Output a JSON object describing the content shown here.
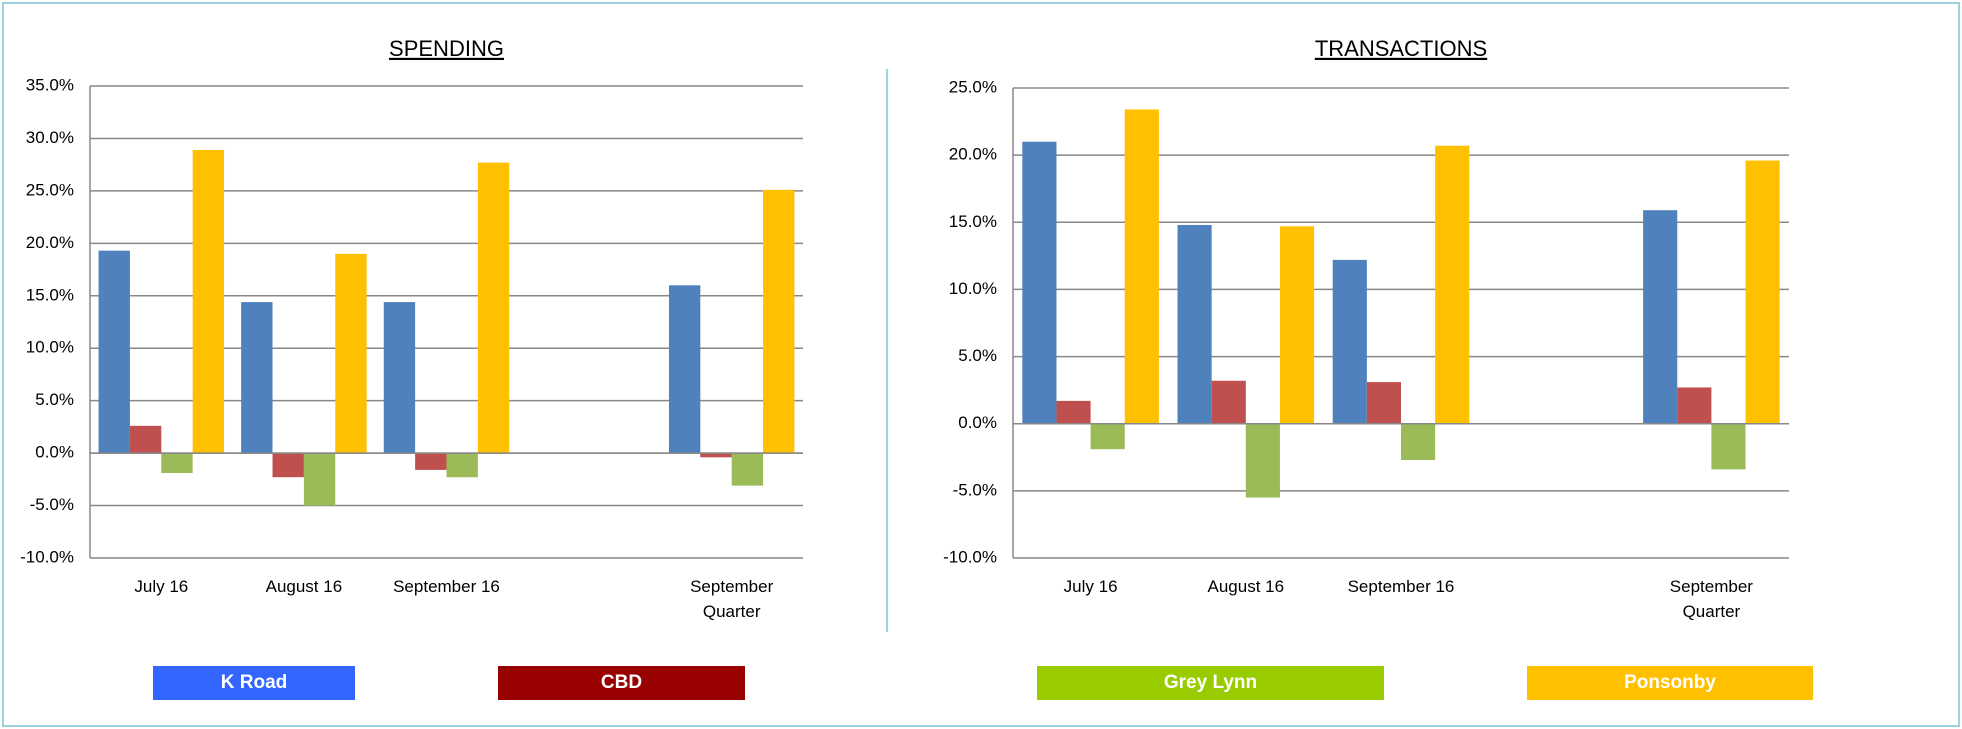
{
  "chart_data": [
    {
      "type": "bar",
      "title": "SPENDING",
      "categories": [
        "July 16",
        "August 16",
        "September 16",
        null,
        "September Quarter"
      ],
      "series": [
        {
          "name": "K Road",
          "color": "#4f81bd",
          "values": [
            19.3,
            14.4,
            14.4,
            null,
            16.0
          ]
        },
        {
          "name": "CBD",
          "color": "#c0504d",
          "values": [
            2.6,
            -2.3,
            -1.6,
            null,
            -0.4
          ]
        },
        {
          "name": "Grey Lynn",
          "color": "#9bbb59",
          "values": [
            -1.9,
            -5.0,
            -2.3,
            null,
            -3.1
          ]
        },
        {
          "name": "Ponsonby",
          "color": "#ffc000",
          "values": [
            28.9,
            19.0,
            27.7,
            null,
            25.1
          ]
        }
      ],
      "ylim": [
        -10,
        35
      ],
      "yticks": [
        {
          "value": -10,
          "label": "-10.0%"
        },
        {
          "value": -5,
          "label": "-5.0%"
        },
        {
          "value": 0,
          "label": "0.0%"
        },
        {
          "value": 5,
          "label": "5.0%"
        },
        {
          "value": 10,
          "label": "10.0%"
        },
        {
          "value": 15,
          "label": "15.0%"
        },
        {
          "value": 20,
          "label": "20.0%"
        },
        {
          "value": 25,
          "label": "25.0%"
        },
        {
          "value": 30,
          "label": "30.0%"
        },
        {
          "value": 35,
          "label": "35.0%"
        }
      ],
      "grid": true
    },
    {
      "type": "bar",
      "title": "TRANSACTIONS",
      "categories": [
        "July 16",
        "August 16",
        "September 16",
        null,
        "September Quarter"
      ],
      "series": [
        {
          "name": "K Road",
          "color": "#4f81bd",
          "values": [
            21.0,
            14.8,
            12.2,
            null,
            15.9
          ]
        },
        {
          "name": "CBD",
          "color": "#c0504d",
          "values": [
            1.7,
            3.2,
            3.1,
            null,
            2.7
          ]
        },
        {
          "name": "Grey Lynn",
          "color": "#9bbb59",
          "values": [
            -1.9,
            -5.5,
            -2.7,
            null,
            -3.4
          ]
        },
        {
          "name": "Ponsonby",
          "color": "#ffc000",
          "values": [
            23.4,
            14.7,
            20.7,
            null,
            19.6
          ]
        }
      ],
      "ylim": [
        -10,
        25
      ],
      "yticks": [
        {
          "value": -10,
          "label": "-10.0%"
        },
        {
          "value": -5,
          "label": "-5.0%"
        },
        {
          "value": 0,
          "label": "0.0%"
        },
        {
          "value": 5,
          "label": "5.0%"
        },
        {
          "value": 10,
          "label": "10.0%"
        },
        {
          "value": 15,
          "label": "15.0%"
        },
        {
          "value": 20,
          "label": "20.0%"
        },
        {
          "value": 25,
          "label": "25.0%"
        }
      ],
      "grid": true
    }
  ],
  "legend": {
    "colors": [
      "#3366ff",
      "#990000",
      "#99cc00",
      "#ffc000"
    ]
  }
}
